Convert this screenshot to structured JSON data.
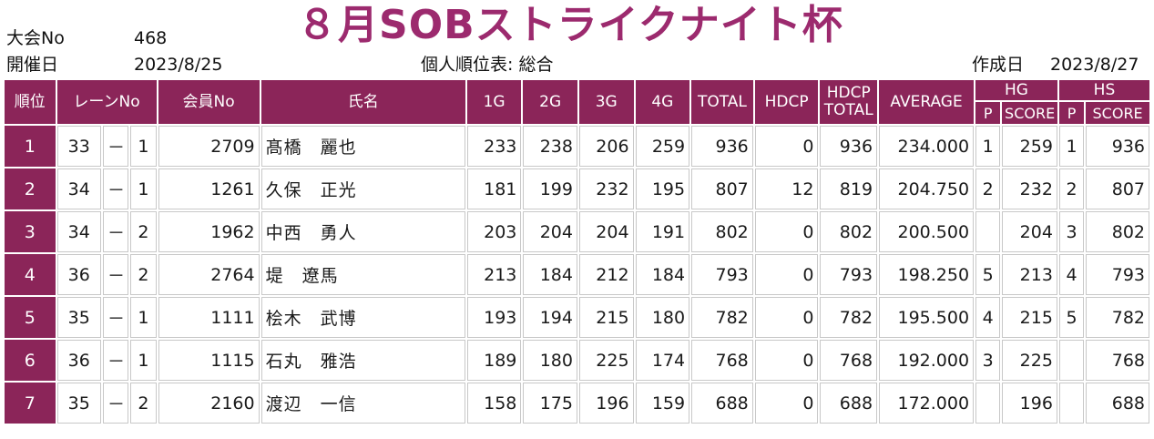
{
  "title": "８月SOBストライクナイト杯",
  "meta": {
    "tournament_label": "大会No",
    "tournament_no": "468",
    "date_label": "開催日",
    "date_value": "2023/8/25",
    "report_title": "個人順位表: 総合",
    "created_label": "作成日",
    "created_value": "2023/8/27"
  },
  "colors": {
    "accent": "#8b2559",
    "title": "#9c2a6e"
  },
  "headers": {
    "rank": "順位",
    "lane": "レーンNo",
    "member": "会員No",
    "name": "氏名",
    "g1": "1G",
    "g2": "2G",
    "g3": "3G",
    "g4": "4G",
    "total": "TOTAL",
    "hdcp": "HDCP",
    "hdcp_total": "HDCP TOTAL",
    "average": "AVERAGE",
    "hg": "HG",
    "hs": "HS",
    "p": "P",
    "score": "SCORE"
  },
  "rows": [
    {
      "rank": "1",
      "lane1": "33",
      "sep": "－",
      "lane2": "1",
      "member": "2709",
      "name": "髙橋　麗也",
      "g1": "233",
      "g2": "238",
      "g3": "206",
      "g4": "259",
      "total": "936",
      "hdcp": "0",
      "hdcp_total": "936",
      "average": "234.000",
      "hg_p": "1",
      "hg_score": "259",
      "hs_p": "1",
      "hs_score": "936"
    },
    {
      "rank": "2",
      "lane1": "34",
      "sep": "－",
      "lane2": "1",
      "member": "1261",
      "name": "久保　正光",
      "g1": "181",
      "g2": "199",
      "g3": "232",
      "g4": "195",
      "total": "807",
      "hdcp": "12",
      "hdcp_total": "819",
      "average": "204.750",
      "hg_p": "2",
      "hg_score": "232",
      "hs_p": "2",
      "hs_score": "807"
    },
    {
      "rank": "3",
      "lane1": "34",
      "sep": "－",
      "lane2": "2",
      "member": "1962",
      "name": "中西　勇人",
      "g1": "203",
      "g2": "204",
      "g3": "204",
      "g4": "191",
      "total": "802",
      "hdcp": "0",
      "hdcp_total": "802",
      "average": "200.500",
      "hg_p": "",
      "hg_score": "204",
      "hs_p": "3",
      "hs_score": "802"
    },
    {
      "rank": "4",
      "lane1": "36",
      "sep": "－",
      "lane2": "2",
      "member": "2764",
      "name": "堤　遼馬",
      "g1": "213",
      "g2": "184",
      "g3": "212",
      "g4": "184",
      "total": "793",
      "hdcp": "0",
      "hdcp_total": "793",
      "average": "198.250",
      "hg_p": "5",
      "hg_score": "213",
      "hs_p": "4",
      "hs_score": "793"
    },
    {
      "rank": "5",
      "lane1": "35",
      "sep": "－",
      "lane2": "1",
      "member": "1111",
      "name": "桧木　武博",
      "g1": "193",
      "g2": "194",
      "g3": "215",
      "g4": "180",
      "total": "782",
      "hdcp": "0",
      "hdcp_total": "782",
      "average": "195.500",
      "hg_p": "4",
      "hg_score": "215",
      "hs_p": "5",
      "hs_score": "782"
    },
    {
      "rank": "6",
      "lane1": "36",
      "sep": "－",
      "lane2": "1",
      "member": "1115",
      "name": "石丸　雅浩",
      "g1": "189",
      "g2": "180",
      "g3": "225",
      "g4": "174",
      "total": "768",
      "hdcp": "0",
      "hdcp_total": "768",
      "average": "192.000",
      "hg_p": "3",
      "hg_score": "225",
      "hs_p": "",
      "hs_score": "768"
    },
    {
      "rank": "7",
      "lane1": "35",
      "sep": "－",
      "lane2": "2",
      "member": "2160",
      "name": "渡辺　一信",
      "g1": "158",
      "g2": "175",
      "g3": "196",
      "g4": "159",
      "total": "688",
      "hdcp": "0",
      "hdcp_total": "688",
      "average": "172.000",
      "hg_p": "",
      "hg_score": "196",
      "hs_p": "",
      "hs_score": "688"
    }
  ]
}
